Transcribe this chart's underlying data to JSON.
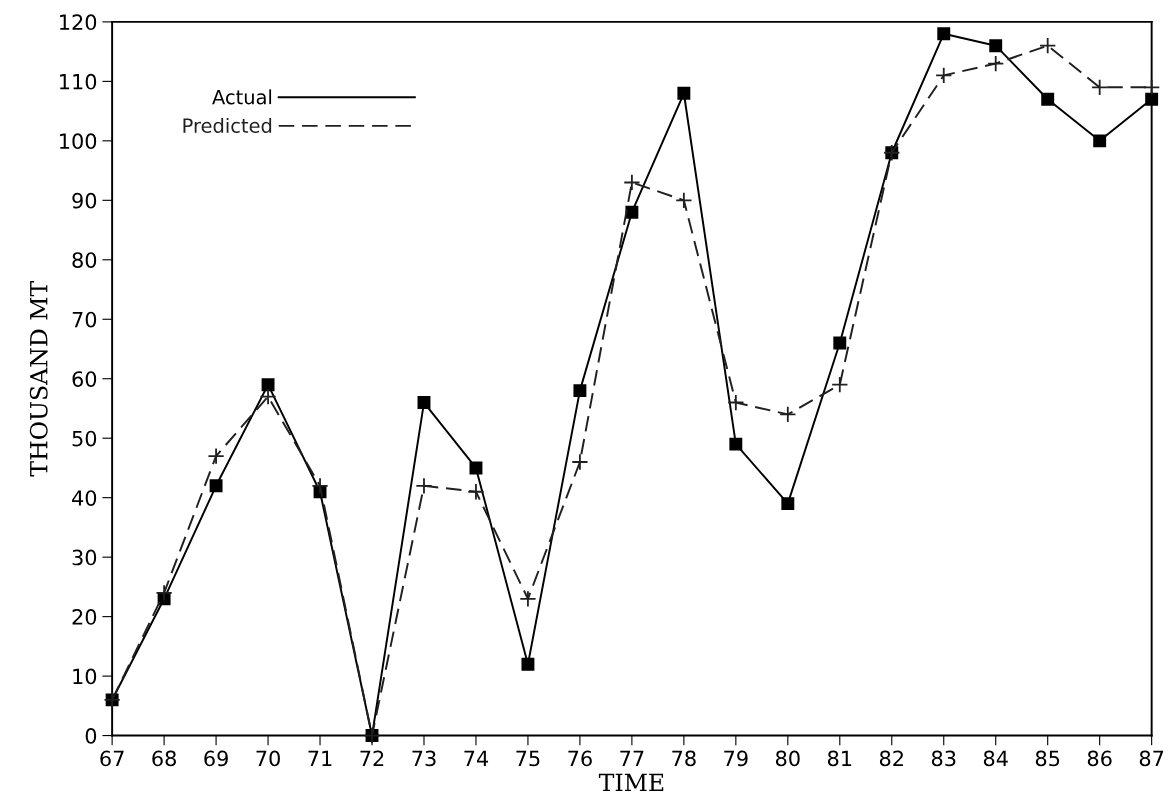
{
  "chart_data": {
    "type": "line",
    "xlabel": "TIME",
    "ylabel": "THOUSAND MT",
    "x": [
      67,
      68,
      69,
      70,
      71,
      72,
      73,
      74,
      75,
      76,
      77,
      78,
      79,
      80,
      81,
      82,
      83,
      84,
      85,
      86,
      87
    ],
    "series": [
      {
        "name": "Actual",
        "color": "#000000",
        "marker": "square",
        "line_style": "solid",
        "values": [
          6,
          23,
          42,
          59,
          41,
          0,
          56,
          45,
          12,
          58,
          88,
          108,
          49,
          39,
          66,
          98,
          118,
          116,
          107,
          100,
          107
        ]
      },
      {
        "name": "Predicted",
        "color": "#202020",
        "marker": "cross",
        "line_style": "dashed",
        "values": [
          6,
          24,
          47,
          57,
          42,
          0,
          42,
          41,
          23,
          46,
          93,
          90,
          56,
          54,
          59,
          98,
          111,
          113,
          116,
          109,
          109
        ]
      }
    ],
    "xlim": [
      67,
      87
    ],
    "xticks": [
      67,
      68,
      69,
      70,
      71,
      72,
      73,
      74,
      75,
      76,
      77,
      78,
      79,
      80,
      81,
      82,
      83,
      84,
      85,
      86,
      87
    ],
    "ylim": [
      0,
      120
    ],
    "yticks": [
      0,
      10,
      20,
      30,
      40,
      50,
      60,
      70,
      80,
      90,
      100,
      110,
      120
    ],
    "grid": false,
    "legend": "top left"
  }
}
